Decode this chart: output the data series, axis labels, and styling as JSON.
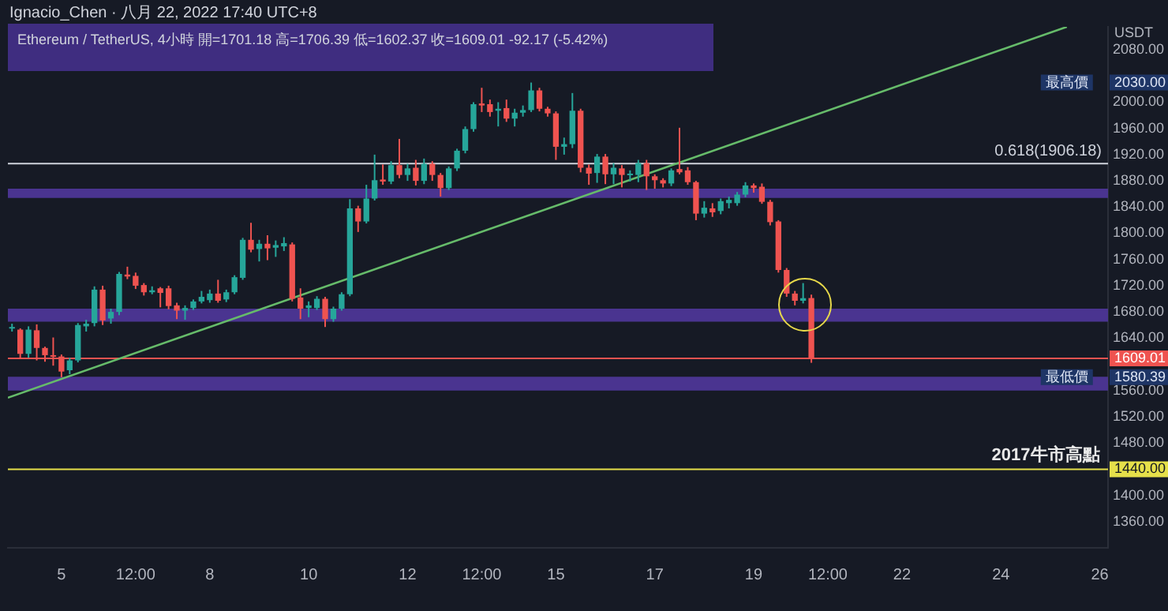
{
  "chart_data": {
    "type": "candlestick",
    "title": "Ignacio_Chen · 八月 22, 2022 17:40 UTC+8",
    "subtitle": "Ethereum / TetherUS, 4小時 開=1701.18 高=1706.39 低=1602.37 收=1609.01 -92.17 (-5.42%)",
    "ylabel": "USDT",
    "x": [
      "2022-08-04T00:00",
      "2022-08-04T04:00",
      "2022-08-04T08:00",
      "2022-08-04T12:00",
      "2022-08-04T16:00",
      "2022-08-04T20:00",
      "2022-08-05T00:00",
      "2022-08-05T04:00",
      "2022-08-05T08:00",
      "2022-08-05T12:00",
      "2022-08-05T16:00",
      "2022-08-05T20:00",
      "2022-08-06T00:00",
      "2022-08-06T04:00",
      "2022-08-06T08:00",
      "2022-08-06T12:00",
      "2022-08-06T16:00",
      "2022-08-06T20:00",
      "2022-08-07T00:00",
      "2022-08-07T04:00",
      "2022-08-07T08:00",
      "2022-08-07T12:00",
      "2022-08-07T16:00",
      "2022-08-07T20:00",
      "2022-08-08T00:00",
      "2022-08-08T04:00",
      "2022-08-08T08:00",
      "2022-08-08T12:00",
      "2022-08-08T16:00",
      "2022-08-08T20:00",
      "2022-08-09T00:00",
      "2022-08-09T04:00",
      "2022-08-09T08:00",
      "2022-08-09T12:00",
      "2022-08-09T16:00",
      "2022-08-09T20:00",
      "2022-08-10T00:00",
      "2022-08-10T04:00",
      "2022-08-10T08:00",
      "2022-08-10T12:00",
      "2022-08-10T16:00",
      "2022-08-10T20:00",
      "2022-08-11T00:00",
      "2022-08-11T04:00",
      "2022-08-11T08:00",
      "2022-08-11T12:00",
      "2022-08-11T16:00",
      "2022-08-11T20:00",
      "2022-08-12T00:00",
      "2022-08-12T04:00",
      "2022-08-12T08:00",
      "2022-08-12T12:00",
      "2022-08-12T16:00",
      "2022-08-12T20:00",
      "2022-08-13T00:00",
      "2022-08-13T04:00",
      "2022-08-13T08:00",
      "2022-08-13T12:00",
      "2022-08-13T16:00",
      "2022-08-13T20:00",
      "2022-08-14T00:00",
      "2022-08-14T04:00",
      "2022-08-14T08:00",
      "2022-08-14T12:00",
      "2022-08-14T16:00",
      "2022-08-14T20:00",
      "2022-08-15T00:00",
      "2022-08-15T04:00",
      "2022-08-15T08:00",
      "2022-08-15T12:00",
      "2022-08-15T16:00",
      "2022-08-15T20:00",
      "2022-08-16T00:00",
      "2022-08-16T04:00",
      "2022-08-16T08:00",
      "2022-08-16T12:00",
      "2022-08-16T16:00",
      "2022-08-16T20:00",
      "2022-08-17T00:00",
      "2022-08-17T04:00",
      "2022-08-17T08:00",
      "2022-08-17T12:00",
      "2022-08-17T16:00",
      "2022-08-17T20:00",
      "2022-08-18T00:00",
      "2022-08-18T04:00",
      "2022-08-18T08:00",
      "2022-08-18T12:00",
      "2022-08-18T16:00",
      "2022-08-18T20:00",
      "2022-08-19T00:00",
      "2022-08-19T04:00",
      "2022-08-19T08:00",
      "2022-08-19T12:00",
      "2022-08-19T16:00",
      "2022-08-19T20:00",
      "2022-08-20T00:00",
      "2022-08-20T04:00"
    ],
    "ohlc": [
      [
        1655,
        1662,
        1650,
        1657
      ],
      [
        1653,
        1655,
        1608,
        1616
      ],
      [
        1616,
        1658,
        1610,
        1653
      ],
      [
        1652,
        1661,
        1606,
        1625
      ],
      [
        1625,
        1627,
        1604,
        1614
      ],
      [
        1614,
        1641,
        1598,
        1612
      ],
      [
        1612,
        1615,
        1580.39,
        1589
      ],
      [
        1591,
        1610,
        1585,
        1606
      ],
      [
        1606,
        1663,
        1603,
        1660
      ],
      [
        1658,
        1668,
        1650,
        1662
      ],
      [
        1663,
        1719,
        1658,
        1714
      ],
      [
        1714,
        1720,
        1660,
        1667
      ],
      [
        1670,
        1685,
        1662,
        1680
      ],
      [
        1680,
        1741,
        1675,
        1738
      ],
      [
        1737,
        1749,
        1730,
        1734
      ],
      [
        1735,
        1740,
        1715,
        1720
      ],
      [
        1721,
        1724,
        1705,
        1710
      ],
      [
        1710,
        1719,
        1707,
        1713
      ],
      [
        1716,
        1718,
        1687,
        1709
      ],
      [
        1716,
        1720,
        1684,
        1689
      ],
      [
        1690,
        1694,
        1669,
        1682
      ],
      [
        1682,
        1690,
        1668,
        1686
      ],
      [
        1686,
        1699,
        1683,
        1696
      ],
      [
        1696,
        1712,
        1693,
        1703
      ],
      [
        1698,
        1714,
        1694,
        1708
      ],
      [
        1708,
        1729,
        1694,
        1697
      ],
      [
        1699,
        1714,
        1695,
        1710
      ],
      [
        1710,
        1736,
        1707,
        1733
      ],
      [
        1732,
        1793,
        1729,
        1790
      ],
      [
        1790,
        1816,
        1771,
        1775
      ],
      [
        1776,
        1790,
        1757,
        1784
      ],
      [
        1784,
        1797,
        1759,
        1777
      ],
      [
        1778,
        1789,
        1764,
        1782
      ],
      [
        1780,
        1794,
        1773,
        1785
      ],
      [
        1783,
        1786,
        1696,
        1700
      ],
      [
        1702,
        1716,
        1669,
        1685
      ],
      [
        1686,
        1696,
        1672,
        1690
      ],
      [
        1686,
        1704,
        1683,
        1700
      ],
      [
        1700,
        1703,
        1657,
        1669
      ],
      [
        1669,
        1688,
        1665,
        1685
      ],
      [
        1685,
        1710,
        1682,
        1707
      ],
      [
        1707,
        1852,
        1704,
        1838
      ],
      [
        1838,
        1842,
        1802,
        1818
      ],
      [
        1818,
        1874,
        1815,
        1853
      ],
      [
        1853,
        1920,
        1850,
        1881
      ],
      [
        1882,
        1905,
        1874,
        1879
      ],
      [
        1879,
        1910,
        1875,
        1904
      ],
      [
        1904,
        1944,
        1884,
        1889
      ],
      [
        1889,
        1906,
        1880,
        1899
      ],
      [
        1900,
        1912,
        1873,
        1880
      ],
      [
        1880,
        1914,
        1875,
        1906
      ],
      [
        1906,
        1910,
        1880,
        1889
      ],
      [
        1889,
        1892,
        1856,
        1869
      ],
      [
        1869,
        1902,
        1866,
        1899
      ],
      [
        1899,
        1929,
        1895,
        1926
      ],
      [
        1926,
        1963,
        1922,
        1959
      ],
      [
        1959,
        2000,
        1955,
        1997
      ],
      [
        1998,
        2022,
        1985,
        1995
      ],
      [
        1997,
        2004,
        1978,
        1985
      ],
      [
        1987,
        2000,
        1963,
        1990
      ],
      [
        1991,
        2004,
        1970,
        1975
      ],
      [
        1975,
        1990,
        1963,
        1984
      ],
      [
        1984,
        1995,
        1978,
        1988
      ],
      [
        1988,
        2030,
        1985,
        2018
      ],
      [
        2018,
        2022,
        1986,
        1990
      ],
      [
        1990,
        1993,
        1978,
        1983
      ],
      [
        1983,
        1986,
        1912,
        1932
      ],
      [
        1932,
        1946,
        1920,
        1936
      ],
      [
        1936,
        2014,
        1930,
        1987
      ],
      [
        1987,
        1990,
        1893,
        1900
      ],
      [
        1900,
        1905,
        1874,
        1891
      ],
      [
        1892,
        1921,
        1877,
        1917
      ],
      [
        1917,
        1921,
        1875,
        1890
      ],
      [
        1890,
        1907,
        1875,
        1900
      ],
      [
        1899,
        1904,
        1870,
        1889
      ],
      [
        1889,
        1896,
        1879,
        1891
      ],
      [
        1889,
        1912,
        1878,
        1907
      ],
      [
        1907,
        1912,
        1866,
        1887
      ],
      [
        1887,
        1890,
        1868,
        1881
      ],
      [
        1881,
        1884,
        1870,
        1876
      ],
      [
        1876,
        1899,
        1872,
        1896
      ],
      [
        1898,
        1961,
        1890,
        1893
      ],
      [
        1896,
        1901,
        1874,
        1878
      ],
      [
        1878,
        1880,
        1820,
        1830
      ],
      [
        1830,
        1849,
        1824,
        1839
      ],
      [
        1838,
        1846,
        1825,
        1832
      ],
      [
        1834,
        1853,
        1829,
        1849
      ],
      [
        1846,
        1856,
        1838,
        1851
      ],
      [
        1846,
        1863,
        1842,
        1859
      ],
      [
        1859,
        1878,
        1855,
        1873
      ],
      [
        1873,
        1876,
        1862,
        1869
      ],
      [
        1871,
        1876,
        1845,
        1848
      ],
      [
        1848,
        1851,
        1812,
        1817
      ],
      [
        1818,
        1820,
        1740,
        1744
      ],
      [
        1744,
        1747,
        1703,
        1708
      ],
      [
        1708,
        1712,
        1690,
        1697
      ],
      [
        1697,
        1724,
        1693,
        1701
      ],
      [
        1701.18,
        1706.39,
        1602.37,
        1609.01
      ]
    ],
    "colors": [
      "#26a69a",
      "#ef5350",
      "#26a69a",
      "#ef5350",
      "#ef5350",
      "#ef5350",
      "#ef5350",
      "#26a69a",
      "#26a69a",
      "#26a69a",
      "#26a69a",
      "#ef5350",
      "#26a69a",
      "#26a69a",
      "#ef5350",
      "#ef5350",
      "#ef5350",
      "#26a69a",
      "#ef5350",
      "#ef5350",
      "#ef5350",
      "#26a69a",
      "#26a69a",
      "#26a69a",
      "#26a69a",
      "#ef5350",
      "#26a69a",
      "#26a69a",
      "#26a69a",
      "#ef5350",
      "#26a69a",
      "#ef5350",
      "#26a69a",
      "#26a69a",
      "#ef5350",
      "#ef5350",
      "#26a69a",
      "#26a69a",
      "#ef5350",
      "#26a69a",
      "#26a69a",
      "#26a69a",
      "#ef5350",
      "#26a69a",
      "#26a69a",
      "#ef5350",
      "#26a69a",
      "#ef5350",
      "#26a69a",
      "#ef5350",
      "#26a69a",
      "#ef5350",
      "#ef5350",
      "#26a69a",
      "#26a69a",
      "#26a69a",
      "#26a69a",
      "#ef5350",
      "#ef5350",
      "#26a69a",
      "#ef5350",
      "#26a69a",
      "#26a69a",
      "#26a69a",
      "#ef5350",
      "#ef5350",
      "#ef5350",
      "#26a69a",
      "#26a69a",
      "#ef5350",
      "#ef5350",
      "#26a69a",
      "#ef5350",
      "#26a69a",
      "#ef5350",
      "#26a69a",
      "#26a69a",
      "#ef5350",
      "#ef5350",
      "#ef5350",
      "#26a69a",
      "#ef5350",
      "#ef5350",
      "#ef5350",
      "#26a69a",
      "#ef5350",
      "#26a69a",
      "#26a69a",
      "#26a69a",
      "#26a69a",
      "#ef5350",
      "#ef5350",
      "#ef5350",
      "#ef5350",
      "#ef5350",
      "#ef5350",
      "#26a69a",
      "#ef5350"
    ],
    "series": [
      {
        "type": "line",
        "x": [
          "2022-08-03T22:00",
          "2022-08-25T08:00"
        ],
        "values": [
          1549,
          2115
        ],
        "color": "#66bb6a"
      }
    ],
    "xlim": [
      "2022-08-03T22:00",
      "2022-08-26T04:00"
    ],
    "xticks": [
      {
        "value": "2022-08-05",
        "label": "5"
      },
      {
        "value": "2022-08-06T12:00",
        "label": "12:00"
      },
      {
        "value": "2022-08-08",
        "label": "8"
      },
      {
        "value": "2022-08-10",
        "label": "10"
      },
      {
        "value": "2022-08-12",
        "label": "12"
      },
      {
        "value": "2022-08-13T12:00",
        "label": "12:00"
      },
      {
        "value": "2022-08-15",
        "label": "15"
      },
      {
        "value": "2022-08-17",
        "label": "17"
      },
      {
        "value": "2022-08-19",
        "label": "19"
      },
      {
        "value": "2022-08-20T12:00",
        "label": "12:00"
      },
      {
        "value": "2022-08-22",
        "label": "22"
      },
      {
        "value": "2022-08-24",
        "label": "24"
      },
      {
        "value": "2022-08-26",
        "label": "26"
      }
    ],
    "ylim": [
      1320,
      2115
    ],
    "yticks": [
      {
        "value": 1360,
        "label": "1360.00"
      },
      {
        "value": 1400,
        "label": "1400.00"
      },
      {
        "value": 1440,
        "label": null
      },
      {
        "value": 1480,
        "label": "1480.00"
      },
      {
        "value": 1520,
        "label": "1520.00"
      },
      {
        "value": 1560,
        "label": "1560.00"
      },
      {
        "value": 1640,
        "label": "1640.00"
      },
      {
        "value": 1680,
        "label": "1680.00"
      },
      {
        "value": 1720,
        "label": "1720.00"
      },
      {
        "value": 1760,
        "label": "1760.00"
      },
      {
        "value": 1800,
        "label": "1800.00"
      },
      {
        "value": 1840,
        "label": "1840.00"
      },
      {
        "value": 1880,
        "label": "1880.00"
      },
      {
        "value": 1920,
        "label": "1920.00"
      },
      {
        "value": 1960,
        "label": "1960.00"
      },
      {
        "value": 2000,
        "label": "2000.00"
      },
      {
        "value": 2080,
        "label": "2080.00"
      }
    ],
    "bands": [
      {
        "axis": "y",
        "from": 1854,
        "to": 1868,
        "color": "#4a3490"
      },
      {
        "axis": "y",
        "from": 1665,
        "to": 1685,
        "color": "#4a3490"
      },
      {
        "axis": "y",
        "from": 1560,
        "to": 1581,
        "color": "#4a3490"
      }
    ],
    "ref_lines": [
      {
        "axis": "y",
        "value": 1906.18,
        "label": "0.618(1906.18)"
      },
      {
        "axis": "y",
        "value": 1609.01,
        "label": "1609.01",
        "color": "#ef5350"
      },
      {
        "axis": "y",
        "value": 1440,
        "label": "1440.00",
        "color": "#e6e04a"
      }
    ],
    "annotations": [
      {
        "text": "最高價",
        "x": "2022-08-25T08:00",
        "y": 2030
      },
      "2030.00",
      {
        "text": "最低價",
        "x": "2022-08-25T08:00",
        "y": 1580.39
      },
      "1580.39",
      {
        "text": "2017牛市高點",
        "x": "2022-08-26T00:00",
        "y": 1440
      }
    ],
    "grid": false,
    "legend": false
  }
}
